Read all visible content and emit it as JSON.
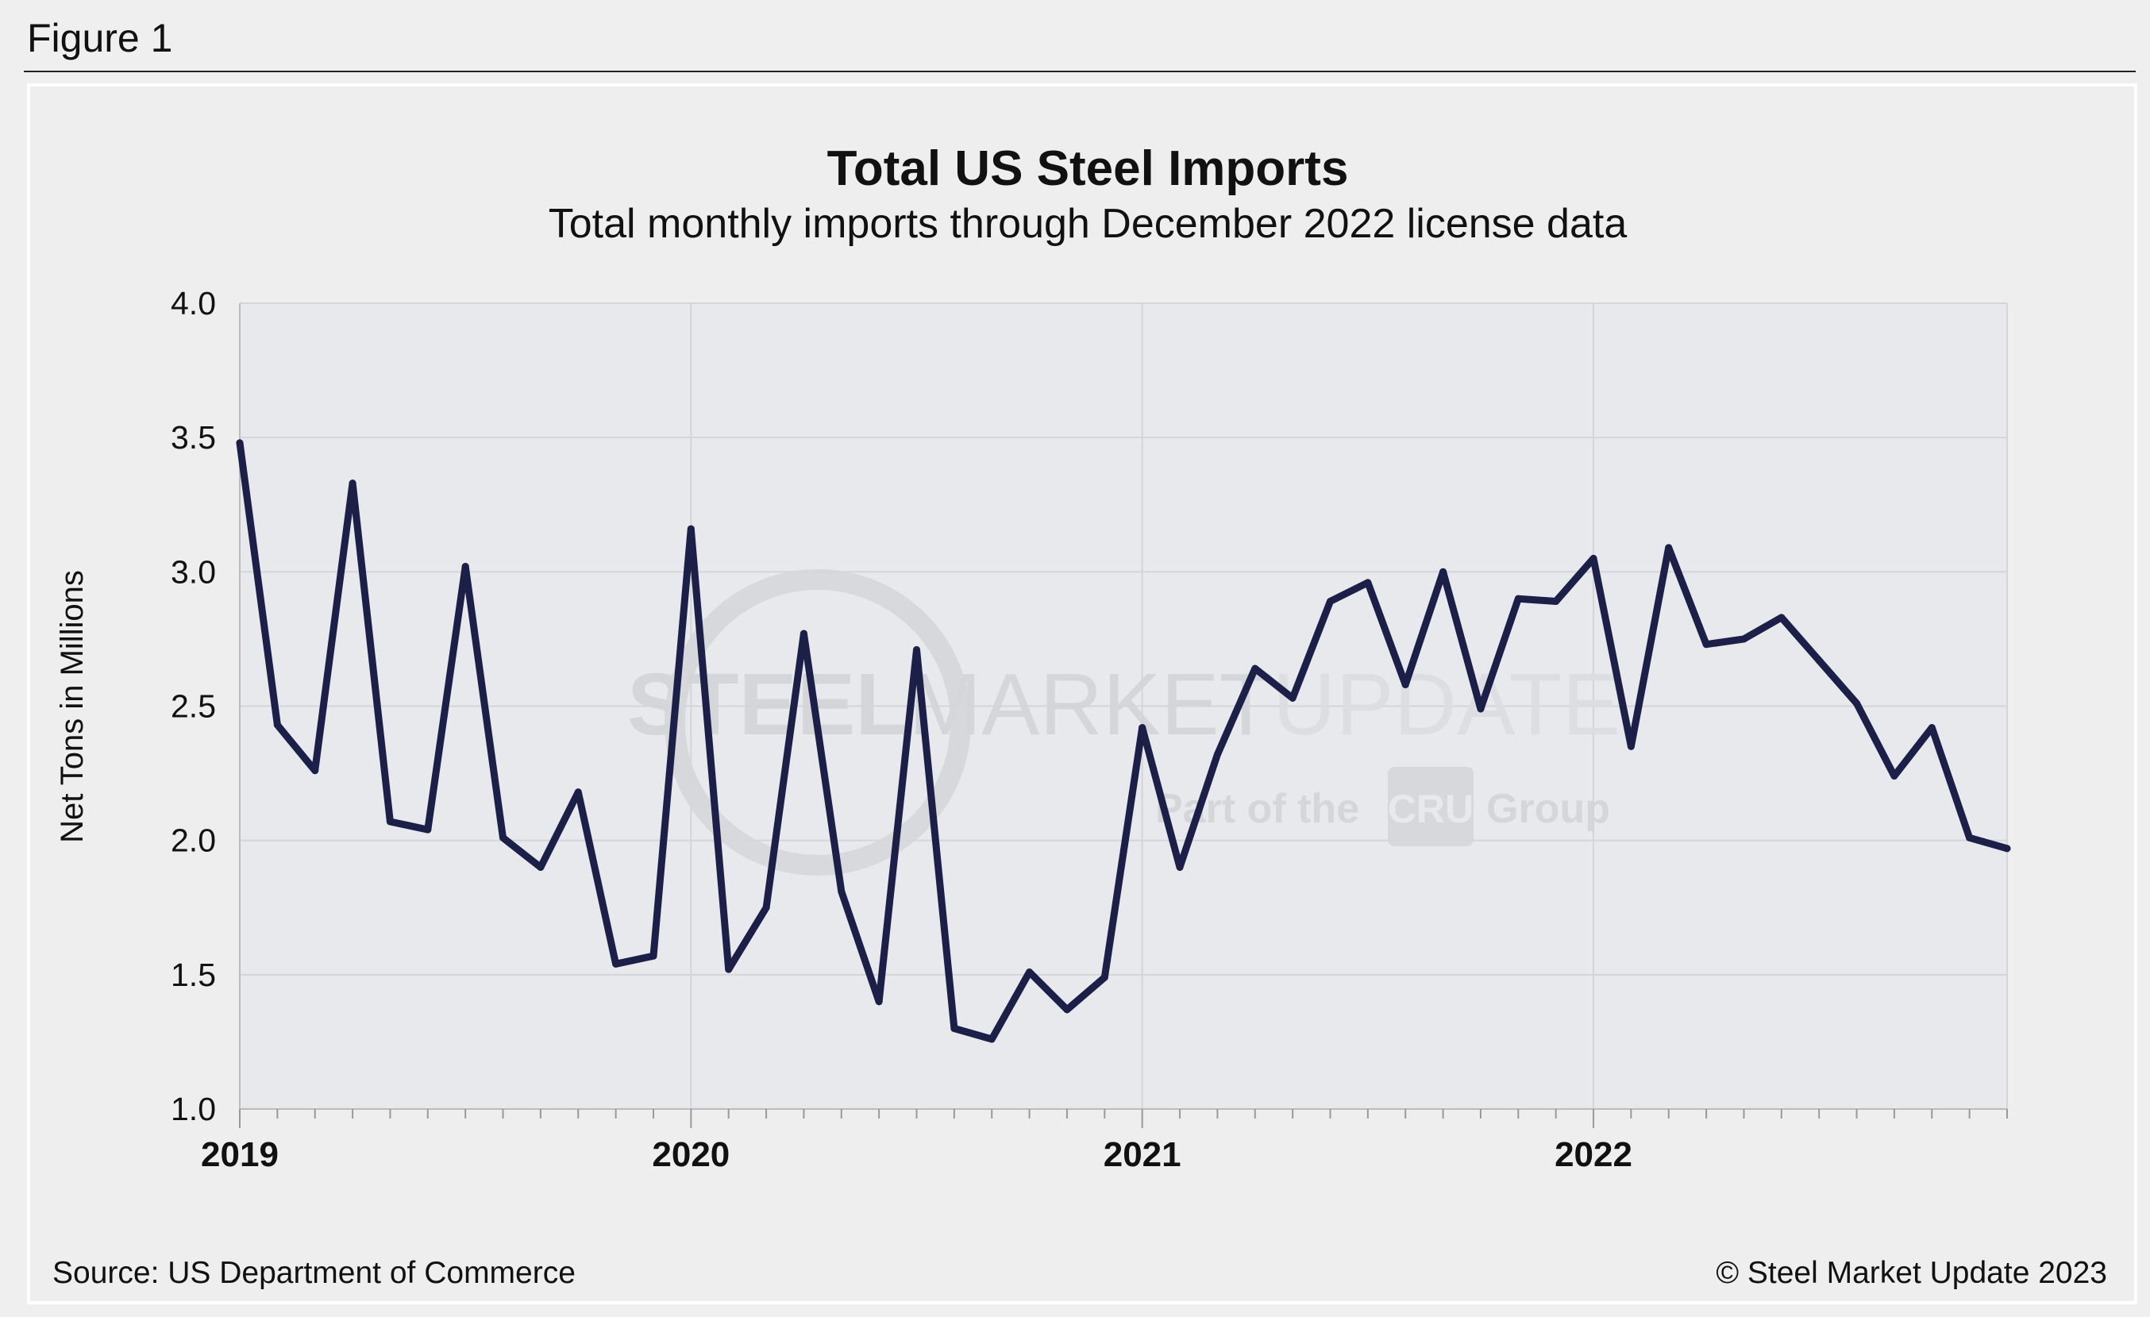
{
  "figure_label": "Figure 1",
  "source": "Source: US Department of Commerce",
  "copyright": "© Steel Market Update 2023",
  "watermark": {
    "main": [
      "STEEL",
      "MARKET",
      "UPDATE"
    ],
    "sub_before": "Part of the",
    "sub_logo": "CRU",
    "sub_after": "Group"
  },
  "colors": {
    "line": "#1c2048",
    "plot_bg": "#e8e9ec",
    "panel_bg": "#eeeeee",
    "grid": "#d4d5d8"
  },
  "chart_data": {
    "type": "line",
    "title": "Total US Steel Imports",
    "subtitle": "Total monthly imports through December 2022 license data",
    "xlabel": "",
    "ylabel": "Net Tons in Millions",
    "ylim": [
      1.0,
      4.0
    ],
    "yticks": [
      "1.0",
      "1.5",
      "2.0",
      "2.5",
      "3.0",
      "3.5",
      "4.0"
    ],
    "xticks": [
      "2019",
      "2020",
      "2021",
      "2022"
    ],
    "grid": true,
    "legend": "none",
    "x": [
      "2019-01",
      "2019-02",
      "2019-03",
      "2019-04",
      "2019-05",
      "2019-06",
      "2019-07",
      "2019-08",
      "2019-09",
      "2019-10",
      "2019-11",
      "2019-12",
      "2020-01",
      "2020-02",
      "2020-03",
      "2020-04",
      "2020-05",
      "2020-06",
      "2020-07",
      "2020-08",
      "2020-09",
      "2020-10",
      "2020-11",
      "2020-12",
      "2021-01",
      "2021-02",
      "2021-03",
      "2021-04",
      "2021-05",
      "2021-06",
      "2021-07",
      "2021-08",
      "2021-09",
      "2021-10",
      "2021-11",
      "2021-12",
      "2022-01",
      "2022-02",
      "2022-03",
      "2022-04",
      "2022-05",
      "2022-06",
      "2022-07",
      "2022-08",
      "2022-09",
      "2022-10",
      "2022-11",
      "2022-12"
    ],
    "values": [
      3.48,
      2.43,
      2.26,
      3.33,
      2.07,
      2.04,
      3.02,
      2.01,
      1.9,
      2.18,
      1.54,
      1.57,
      3.16,
      1.52,
      1.75,
      2.77,
      1.81,
      1.4,
      2.71,
      1.3,
      1.26,
      1.51,
      1.37,
      1.49,
      2.42,
      1.9,
      2.32,
      2.64,
      2.53,
      2.89,
      2.96,
      2.58,
      3.0,
      2.49,
      2.9,
      2.89,
      3.05,
      2.35,
      3.09,
      2.73,
      2.75,
      2.83,
      2.67,
      2.51,
      2.24,
      2.42,
      2.01,
      1.97
    ]
  }
}
